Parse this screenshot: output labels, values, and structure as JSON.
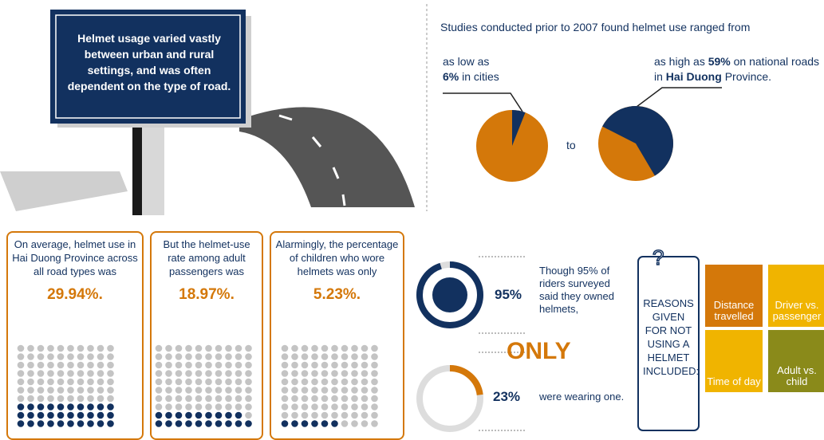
{
  "sign": {
    "text": "Helmet usage varied vastly between urban and rural settings, and was often dependent on the type of road."
  },
  "studies": {
    "title": "Studies conducted prior to 2007 found helmet use ranged from",
    "low": {
      "prefix": "as low as",
      "value": 6,
      "label": "6%",
      "suffix": "in cities"
    },
    "connector": "to",
    "high": {
      "prefix": "as high as",
      "value": 59,
      "label": "59%",
      "middle": "on national roads in",
      "place": "Hai Duong",
      "suffix": "Province."
    }
  },
  "cards": [
    {
      "text": "On average, helmet use in Hai Duong Province across all road types was",
      "value": 29.94,
      "label": "29.94%."
    },
    {
      "text": "But the helmet-use rate among adult passengers was",
      "value": 18.97,
      "label": "18.97%."
    },
    {
      "text": "Alarmingly, the percentage of children who wore helmets was only",
      "value": 5.23,
      "label": "5.23%."
    }
  ],
  "ownership": {
    "owned": {
      "value": 95,
      "label": "95%",
      "text": "Though 95% of riders surveyed said they owned helmets,"
    },
    "connector": "ONLY",
    "wearing": {
      "value": 23,
      "label": "23%",
      "text": "were wearing one."
    }
  },
  "reasons": {
    "title": "REASONS GIVEN FOR NOT USING A HELMET INCLUDED:",
    "items": [
      "Distance travelled",
      "Driver vs. passenger",
      "Time of day",
      "Adult vs. child"
    ]
  }
}
